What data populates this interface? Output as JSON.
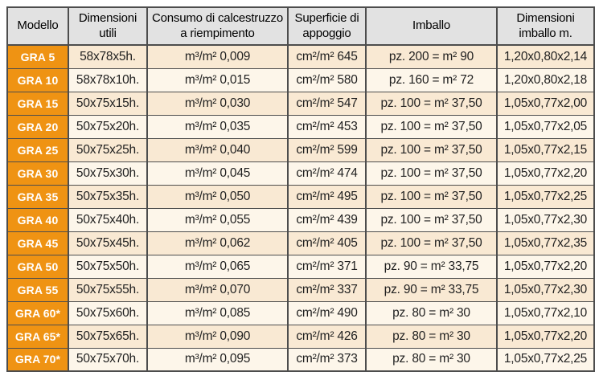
{
  "colors": {
    "model_cell_background": "#ef9313",
    "header_background": "#e2e2e2",
    "row_odd_background": "#f9e9d3",
    "row_even_background": "#fdf6ea",
    "border": "#4d4d4d",
    "model_text": "#ffffff",
    "body_text": "#1f1f1f"
  },
  "table": {
    "headers": [
      "Modello",
      "Dimensioni utili",
      "Consumo di calcestruzzo a riempimento",
      "Superficie di appoggio",
      "Imballo",
      "Dimensioni imballo m."
    ],
    "rows": [
      [
        "GRA 5",
        "58x78x5h.",
        "m³/m² 0,009",
        "cm²/m² 645",
        "pz. 200 = m² 90",
        "1,20x0,80x2,14"
      ],
      [
        "GRA 10",
        "58x78x10h.",
        "m³/m² 0,015",
        "cm²/m² 580",
        "pz. 160 = m² 72",
        "1,20x0,80x2,18"
      ],
      [
        "GRA 15",
        "50x75x15h.",
        "m³/m² 0,030",
        "cm²/m² 547",
        "pz. 100 = m² 37,50",
        "1,05x0,77x2,00"
      ],
      [
        "GRA 20",
        "50x75x20h.",
        "m³/m² 0,035",
        "cm²/m² 453",
        "pz. 100 = m² 37,50",
        "1,05x0,77x2,05"
      ],
      [
        "GRA 25",
        "50x75x25h.",
        "m³/m² 0,040",
        "cm²/m² 599",
        "pz. 100 = m² 37,50",
        "1,05x0,77x2,15"
      ],
      [
        "GRA 30",
        "50x75x30h.",
        "m³/m² 0,045",
        "cm²/m² 474",
        "pz. 100 = m² 37,50",
        "1,05x0,77x2,20"
      ],
      [
        "GRA 35",
        "50x75x35h.",
        "m³/m² 0,050",
        "cm²/m² 495",
        "pz. 100 = m² 37,50",
        "1,05x0,77x2,25"
      ],
      [
        "GRA 40",
        "50x75x40h.",
        "m³/m² 0,055",
        "cm²/m² 439",
        "pz. 100 = m² 37,50",
        "1,05x0,77x2,30"
      ],
      [
        "GRA 45",
        "50x75x45h.",
        "m³/m² 0,062",
        "cm²/m² 405",
        "pz. 100 = m² 37,50",
        "1,05x0,77x2,35"
      ],
      [
        "GRA 50",
        "50x75x50h.",
        "m³/m² 0,065",
        "cm²/m² 371",
        "pz. 90 = m² 33,75",
        "1,05x0,77x2,20"
      ],
      [
        "GRA 55",
        "50x75x55h.",
        "m³/m² 0,070",
        "cm²/m² 337",
        "pz. 90 = m² 33,75",
        "1,05x0,77x2,30"
      ],
      [
        "GRA 60*",
        "50x75x60h.",
        "m³/m² 0,085",
        "cm²/m² 490",
        "pz. 80 = m² 30",
        "1,05x0,77x2,10"
      ],
      [
        "GRA 65*",
        "50x75x65h.",
        "m³/m² 0,090",
        "cm²/m² 426",
        "pz. 80 = m² 30",
        "1,05x0,77x2,20"
      ],
      [
        "GRA 70*",
        "50x75x70h.",
        "m³/m² 0,095",
        "cm²/m² 373",
        "pz. 80 = m² 30",
        "1,05x0,77x2,25"
      ]
    ]
  }
}
